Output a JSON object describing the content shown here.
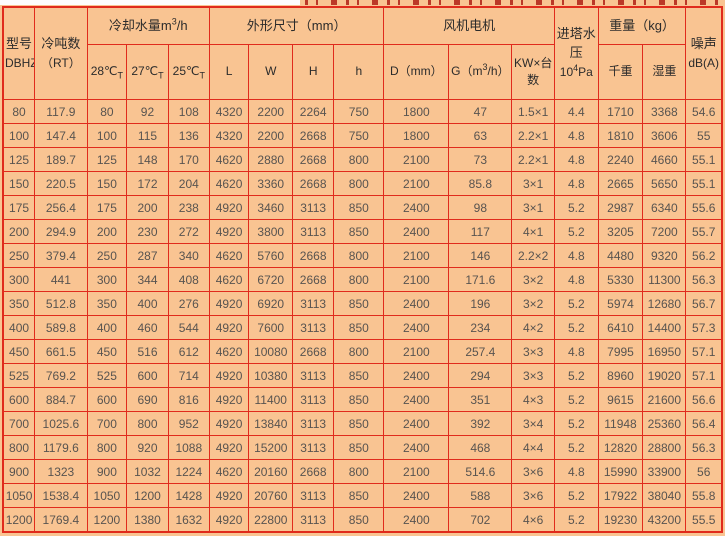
{
  "page": {
    "background_color": "#f9c492",
    "grid_color": "#e02b1c",
    "data_text_color": "#585450",
    "header_text_color": "#2b2b2b",
    "cropped_title_note": "dark-red bottom fragments of a cut-off title line above the table"
  },
  "table": {
    "header": {
      "model_line1": "型号",
      "model_line2": "DBHZ",
      "rt_line1": "冷吨数",
      "rt_line2": "（RT）",
      "water_flow": {
        "prefix": "冷却水量m",
        "sup": "3",
        "suffix": "/h"
      },
      "t28": {
        "prefix": "28℃",
        "sub": "T"
      },
      "t27": {
        "prefix": "27℃",
        "sub": "T"
      },
      "t25": {
        "prefix": "25℃",
        "sub": "T"
      },
      "dimensions_group": "外形尺寸（mm）",
      "dim_l": "L",
      "dim_w": "W",
      "dim_h_upper": "H",
      "dim_h_lower": "h",
      "fan_motor_group": "风机电机",
      "d_col": "D（mm）",
      "g_col": {
        "prefix": "G（m",
        "sup": "3",
        "suffix": "/h）"
      },
      "kw": {
        "line1": "KW×台",
        "line2": "数"
      },
      "pressure": {
        "line1": "进塔水",
        "line2": "压",
        "line3_prefix": "10",
        "line3_sup": "4",
        "line3_suffix": "Pa"
      },
      "weight_group": "重量（kg）",
      "dry_weight": "千重",
      "wet_weight": "湿重",
      "noise": {
        "line1": "噪声",
        "line2": "dB(A)"
      }
    },
    "columns": [
      {
        "key": "model"
      },
      {
        "key": "rt"
      },
      {
        "key": "t28"
      },
      {
        "key": "t27"
      },
      {
        "key": "t25"
      },
      {
        "key": "dim-l"
      },
      {
        "key": "dim-w"
      },
      {
        "key": "dim-h-upper"
      },
      {
        "key": "dim-h-lower"
      },
      {
        "key": "fan-d"
      },
      {
        "key": "fan-g"
      },
      {
        "key": "fan-kw"
      },
      {
        "key": "pressure"
      },
      {
        "key": "dry-weight"
      },
      {
        "key": "wet-weight"
      },
      {
        "key": "noise"
      }
    ],
    "rows": [
      [
        "80",
        "117.9",
        "80",
        "92",
        "108",
        "4320",
        "2200",
        "2264",
        "750",
        "1800",
        "47",
        "1.5×1",
        "4.4",
        "1710",
        "3368",
        "54.6"
      ],
      [
        "100",
        "147.4",
        "100",
        "115",
        "136",
        "4320",
        "2200",
        "2668",
        "750",
        "1800",
        "63",
        "2.2×1",
        "4.8",
        "1810",
        "3606",
        "55"
      ],
      [
        "125",
        "189.7",
        "125",
        "148",
        "170",
        "4620",
        "2880",
        "2668",
        "800",
        "2100",
        "73",
        "2.2×1",
        "4.8",
        "2240",
        "4660",
        "55.1"
      ],
      [
        "150",
        "220.5",
        "150",
        "172",
        "204",
        "4620",
        "3360",
        "2668",
        "800",
        "2100",
        "85.8",
        "3×1",
        "4.8",
        "2665",
        "5650",
        "55.1"
      ],
      [
        "175",
        "256.4",
        "175",
        "200",
        "238",
        "4920",
        "3460",
        "3113",
        "850",
        "2400",
        "98",
        "3×1",
        "5.2",
        "2987",
        "6340",
        "55.6"
      ],
      [
        "200",
        "294.9",
        "200",
        "230",
        "272",
        "4920",
        "3800",
        "3113",
        "850",
        "2400",
        "117",
        "4×1",
        "5.2",
        "3205",
        "7200",
        "55.7"
      ],
      [
        "250",
        "379.4",
        "250",
        "287",
        "340",
        "4620",
        "5760",
        "2668",
        "800",
        "2100",
        "146",
        "2.2×2",
        "4.8",
        "4480",
        "9320",
        "56.2"
      ],
      [
        "300",
        "441",
        "300",
        "344",
        "408",
        "4620",
        "6720",
        "2668",
        "800",
        "2100",
        "171.6",
        "3×2",
        "4.8",
        "5330",
        "11300",
        "56.3"
      ],
      [
        "350",
        "512.8",
        "350",
        "400",
        "276",
        "4920",
        "6920",
        "3113",
        "850",
        "2400",
        "196",
        "3×2",
        "5.2",
        "5974",
        "12680",
        "56.7"
      ],
      [
        "400",
        "589.8",
        "400",
        "460",
        "544",
        "4920",
        "7600",
        "3113",
        "850",
        "2400",
        "234",
        "4×2",
        "5.2",
        "6410",
        "14400",
        "57.3"
      ],
      [
        "450",
        "661.5",
        "450",
        "516",
        "612",
        "4620",
        "10080",
        "2668",
        "800",
        "2100",
        "257.4",
        "3×3",
        "4.8",
        "7995",
        "16950",
        "57.1"
      ],
      [
        "525",
        "769.2",
        "525",
        "600",
        "714",
        "4920",
        "10380",
        "3113",
        "850",
        "2400",
        "294",
        "3×3",
        "5.2",
        "8960",
        "19020",
        "57.1"
      ],
      [
        "600",
        "884.7",
        "600",
        "690",
        "816",
        "4920",
        "11400",
        "3113",
        "850",
        "2400",
        "351",
        "4×3",
        "5.2",
        "9615",
        "21600",
        "56.6"
      ],
      [
        "700",
        "1025.6",
        "700",
        "800",
        "952",
        "4920",
        "13840",
        "3113",
        "850",
        "2400",
        "392",
        "3×4",
        "5.2",
        "11948",
        "25360",
        "56.4"
      ],
      [
        "800",
        "1179.6",
        "800",
        "920",
        "1088",
        "4920",
        "15200",
        "3113",
        "850",
        "2400",
        "468",
        "4×4",
        "5.2",
        "12820",
        "28800",
        "56.3"
      ],
      [
        "900",
        "1323",
        "900",
        "1032",
        "1224",
        "4620",
        "20160",
        "2668",
        "800",
        "2100",
        "514.6",
        "3×6",
        "4.8",
        "15990",
        "33900",
        "56"
      ],
      [
        "1050",
        "1538.4",
        "1050",
        "1200",
        "1428",
        "4920",
        "20760",
        "3113",
        "850",
        "2400",
        "588",
        "3×6",
        "5.2",
        "17922",
        "38040",
        "55.8"
      ],
      [
        "1200",
        "1769.4",
        "1200",
        "1380",
        "1632",
        "4920",
        "22800",
        "3113",
        "850",
        "2400",
        "702",
        "4×6",
        "5.2",
        "19230",
        "43200",
        "55.5"
      ]
    ]
  }
}
